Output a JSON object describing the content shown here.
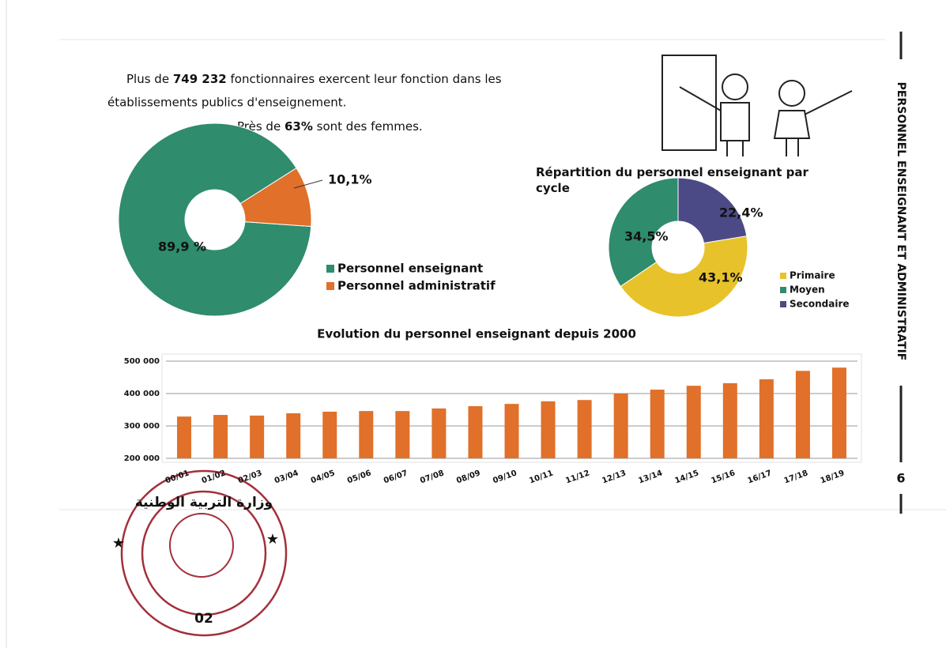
{
  "document": {
    "intro": [
      "Plus de",
      "749 232",
      "fonctionnaires exercent leur fonction dans les",
      "établissements publics d'enseignement.",
      "Près de",
      "63%",
      "sont des femmes."
    ],
    "side_title": "PERSONNEL ENSEIGNANT ET ADMINISTRATIF",
    "page_number": "6",
    "stamp": {
      "text": "وزارة التربية الوطنية",
      "number": "02"
    }
  },
  "chart_data": [
    {
      "type": "pie",
      "categories": [
        "Personnel enseignant",
        "Personnel administratif"
      ],
      "values": [
        89.9,
        10.1
      ],
      "value_labels": [
        "89,9 %",
        "10,1%"
      ],
      "colors": [
        "#2f8c6c",
        "#e0702a"
      ],
      "legend": "right"
    },
    {
      "type": "pie",
      "title": "Répartition du personnel enseignant par cycle",
      "categories": [
        "Primaire",
        "Moyen",
        "Secondaire"
      ],
      "values": [
        43.1,
        34.5,
        22.4
      ],
      "value_labels": [
        "43,1%",
        "34,5%",
        "22,4%"
      ],
      "colors": [
        "#e8c22a",
        "#2f8c6c",
        "#4b4a86"
      ],
      "legend": "right"
    },
    {
      "type": "bar",
      "title": "Evolution du personnel enseignant depuis 2000",
      "categories": [
        "00/01",
        "01/02",
        "02/03",
        "03/04",
        "04/05",
        "05/06",
        "06/07",
        "07/08",
        "08/09",
        "09/10",
        "10/11",
        "11/12",
        "12/13",
        "13/14",
        "14/15",
        "15/16",
        "16/17",
        "17/18",
        "18/19"
      ],
      "values": [
        329000,
        334000,
        332000,
        339000,
        344000,
        346000,
        346000,
        354000,
        361000,
        368000,
        376000,
        380000,
        400000,
        412000,
        424000,
        432000,
        444000,
        470000,
        480000
      ],
      "color": "#e0702a",
      "ylim": [
        200000,
        500000
      ],
      "yticks": [
        {
          "value": 200000,
          "label": "200 000"
        },
        {
          "value": 300000,
          "label": "300 000"
        },
        {
          "value": 400000,
          "label": "400 000"
        },
        {
          "value": 500000,
          "label": "500 000"
        }
      ],
      "grid": true
    }
  ]
}
